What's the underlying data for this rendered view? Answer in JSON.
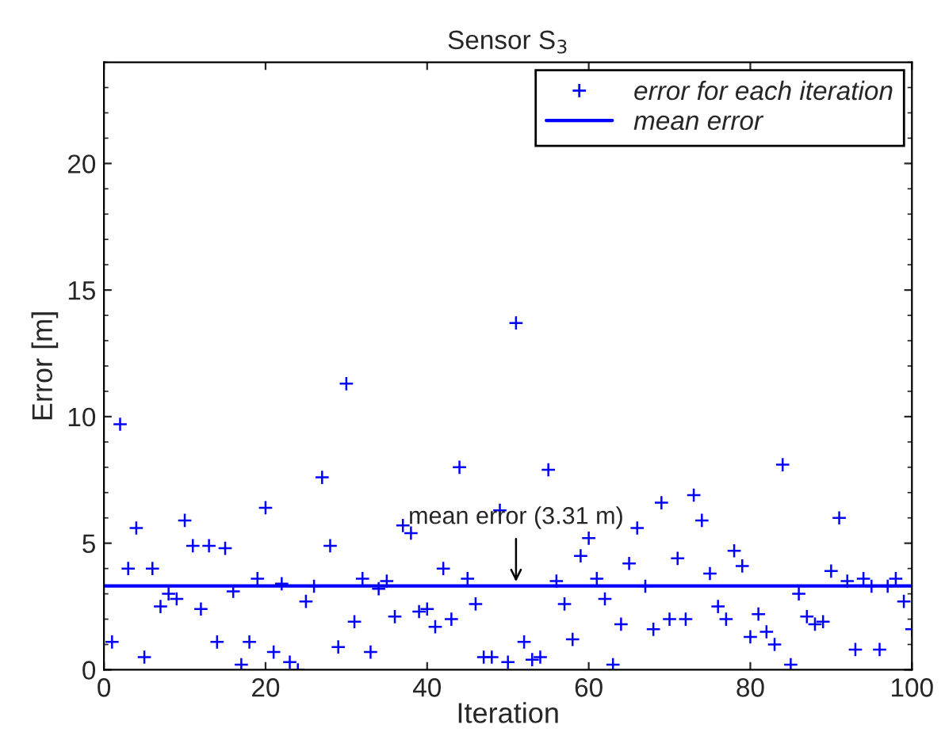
{
  "chart_data": {
    "type": "scatter",
    "title": "Sensor S$_{3}$",
    "xlabel": "Iteration",
    "ylabel": "Error [m]",
    "x": [
      1,
      2,
      3,
      4,
      5,
      6,
      7,
      8,
      9,
      10,
      11,
      12,
      13,
      14,
      15,
      16,
      17,
      18,
      19,
      20,
      21,
      22,
      23,
      24,
      25,
      26,
      27,
      28,
      29,
      30,
      31,
      32,
      33,
      34,
      35,
      36,
      37,
      38,
      39,
      40,
      41,
      42,
      43,
      44,
      45,
      46,
      47,
      48,
      49,
      50,
      51,
      52,
      53,
      54,
      55,
      56,
      57,
      58,
      59,
      60,
      61,
      62,
      63,
      64,
      65,
      66,
      67,
      68,
      69,
      70,
      71,
      72,
      73,
      74,
      75,
      76,
      77,
      78,
      79,
      80,
      81,
      82,
      83,
      84,
      85,
      86,
      87,
      88,
      89,
      90,
      91,
      92,
      93,
      94,
      95,
      96,
      97,
      98,
      99,
      100
    ],
    "series": [
      {
        "name": "error for each iteration",
        "color": "#0000ff",
        "values": [
          1.1,
          9.7,
          4.0,
          5.6,
          0.5,
          4.0,
          2.5,
          3.0,
          2.8,
          5.9,
          4.9,
          2.4,
          4.9,
          1.1,
          4.8,
          3.1,
          0.2,
          1.1,
          3.6,
          6.4,
          0.7,
          3.4,
          0.3,
          0.0,
          2.7,
          3.3,
          7.6,
          4.9,
          0.9,
          11.3,
          1.9,
          3.6,
          0.7,
          3.2,
          3.5,
          2.1,
          5.7,
          5.4,
          2.3,
          2.4,
          1.7,
          4.0,
          2.0,
          8.0,
          3.6,
          2.6,
          0.5,
          0.5,
          6.3,
          0.3,
          13.7,
          1.1,
          0.4,
          0.5,
          7.9,
          3.5,
          2.6,
          1.2,
          4.5,
          5.2,
          3.6,
          2.8,
          0.2,
          1.8,
          4.2,
          5.6,
          3.3,
          1.6,
          6.6,
          2.0,
          4.4,
          2.0,
          6.9,
          5.9,
          3.8,
          2.5,
          2.0,
          4.7,
          4.1,
          1.3,
          2.2,
          1.5,
          1.0,
          8.1,
          0.2,
          3.0,
          2.1,
          1.8,
          1.9,
          3.9,
          6.0,
          3.5,
          0.8,
          3.6,
          3.3,
          0.8,
          3.3,
          3.6,
          2.7,
          1.6
        ]
      }
    ],
    "marker": "cross",
    "ref_lines": [
      {
        "axis": "y",
        "value": 3.31,
        "label": "mean error",
        "color": "#0000ff",
        "line_style": "solid"
      }
    ],
    "annotations": [
      {
        "text": "mean error (3.31 m)",
        "x": 51,
        "y": 3.31
      }
    ],
    "xlim": [
      0,
      100
    ],
    "xticks": [
      0,
      20,
      40,
      60,
      80,
      100
    ],
    "ylim": [
      0,
      24
    ],
    "yticks": [
      0,
      5,
      10,
      15,
      20
    ],
    "grid": false,
    "legend": "top right"
  }
}
